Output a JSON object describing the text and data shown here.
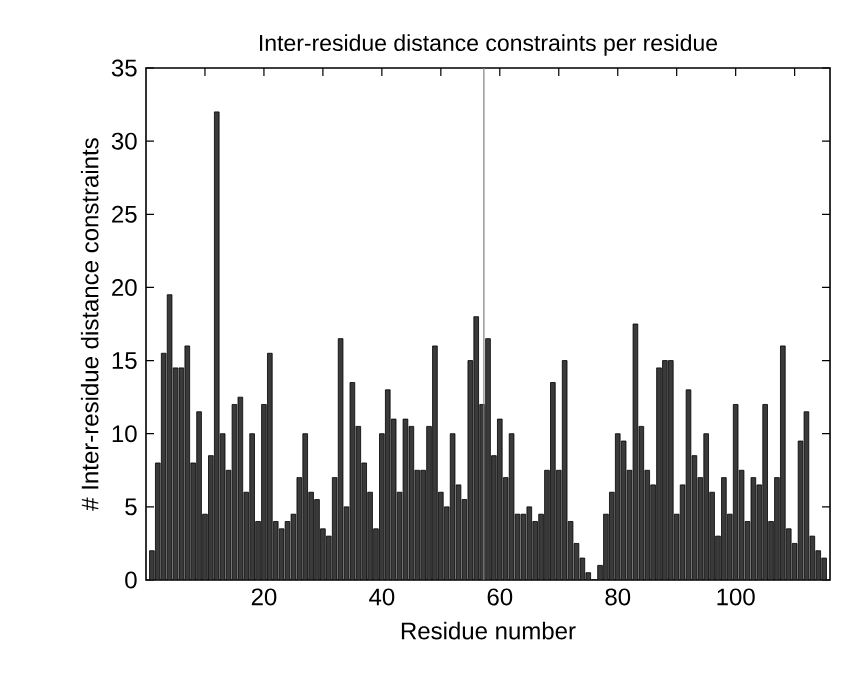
{
  "chart_data": {
    "type": "bar",
    "title": "Inter-residue distance constraints per residue",
    "xlabel": "Residue number",
    "ylabel": "# Inter-residue distance constraints",
    "x": [
      1,
      2,
      3,
      4,
      5,
      6,
      7,
      8,
      9,
      10,
      11,
      12,
      13,
      14,
      15,
      16,
      17,
      18,
      19,
      20,
      21,
      22,
      23,
      24,
      25,
      26,
      27,
      28,
      29,
      30,
      31,
      32,
      33,
      34,
      35,
      36,
      37,
      38,
      39,
      40,
      41,
      42,
      43,
      44,
      45,
      46,
      47,
      48,
      49,
      50,
      51,
      52,
      53,
      54,
      55,
      56,
      57,
      58,
      59,
      60,
      61,
      62,
      63,
      64,
      65,
      66,
      67,
      68,
      69,
      70,
      71,
      72,
      73,
      74,
      75,
      76,
      77,
      78,
      79,
      80,
      81,
      82,
      83,
      84,
      85,
      86,
      87,
      88,
      89,
      90,
      91,
      92,
      93,
      94,
      95,
      96,
      97,
      98,
      99,
      100,
      101,
      102,
      103,
      104,
      105,
      106,
      107,
      108,
      109,
      110,
      111,
      112,
      113,
      114,
      115
    ],
    "values": [
      2,
      8,
      15.5,
      19.5,
      14.5,
      14.5,
      16,
      8,
      11.5,
      4.5,
      8.5,
      32,
      10,
      7.5,
      12,
      12.5,
      6,
      10,
      4,
      12,
      15.5,
      4,
      3.5,
      4,
      4.5,
      7,
      10,
      6,
      5.5,
      3.5,
      3,
      7,
      16.5,
      5,
      13.5,
      10.5,
      8,
      6,
      3.5,
      10,
      13,
      11,
      6,
      11,
      10.5,
      7.5,
      7.5,
      10.5,
      16,
      6,
      5,
      10,
      6.5,
      5.5,
      15,
      18,
      12,
      16.5,
      8.5,
      11,
      7,
      10,
      4.5,
      4.5,
      5,
      4,
      4.5,
      7.5,
      13.5,
      7.5,
      15,
      4,
      2.5,
      1.5,
      0.5,
      0,
      1,
      4.5,
      6,
      10,
      9.5,
      7.5,
      17.5,
      10.5,
      7.5,
      6.5,
      14.5,
      15,
      15,
      4.5,
      6.5,
      13,
      8.5,
      7,
      10,
      6,
      3,
      7,
      4.5,
      12,
      7.5,
      4,
      7,
      6.5,
      12,
      4,
      7,
      16,
      3.5,
      2.5,
      9.5,
      11.5,
      3,
      2,
      1.5
    ],
    "color": "#3a3a3a",
    "xlim": [
      0,
      116
    ],
    "xticks": [
      {
        "value": 10,
        "label": null
      },
      20,
      {
        "value": 30,
        "label": null
      },
      40,
      {
        "value": 50,
        "label": null
      },
      60,
      {
        "value": 70,
        "label": null
      },
      80,
      {
        "value": 90,
        "label": null
      },
      100,
      {
        "value": 110,
        "label": null
      }
    ],
    "ylim": [
      0,
      35
    ],
    "yticks": [
      0,
      5,
      10,
      15,
      20,
      25,
      30,
      35
    ],
    "ref_lines": [
      {
        "axis": "x",
        "value": 57.3,
        "color": "#808080"
      }
    ]
  }
}
